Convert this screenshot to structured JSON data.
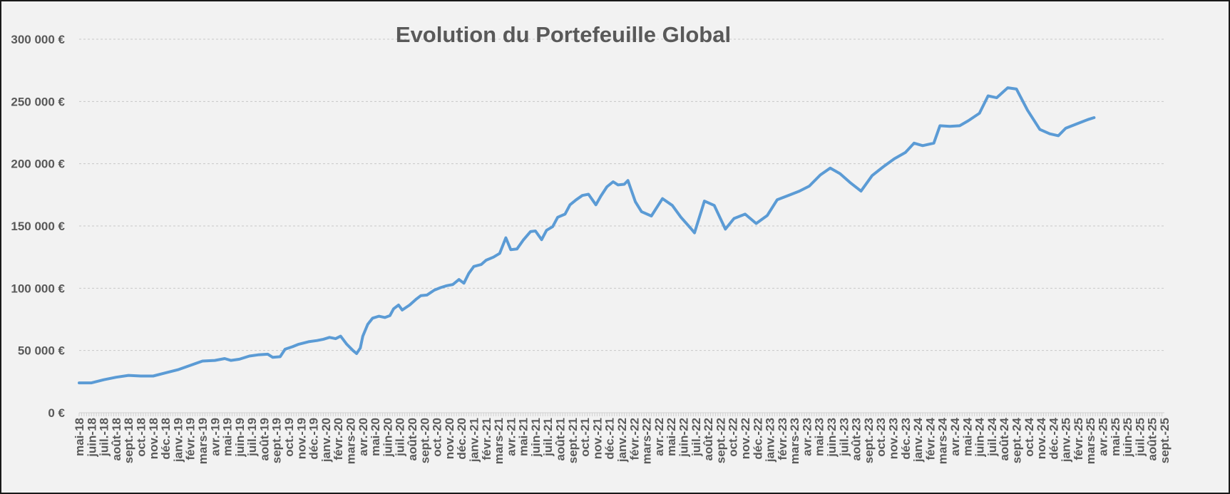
{
  "chart_data": {
    "type": "line",
    "title": "Evolution du Portefeuille Global",
    "xlabel": "",
    "ylabel": "",
    "ylim": [
      0,
      300000
    ],
    "y_ticks": [
      {
        "value": 0,
        "label": "0 €"
      },
      {
        "value": 50000,
        "label": "50 000 €"
      },
      {
        "value": 100000,
        "label": "100 000 €"
      },
      {
        "value": 150000,
        "label": "150 000 €"
      },
      {
        "value": 200000,
        "label": "200 000 €"
      },
      {
        "value": 250000,
        "label": "250 000 €"
      },
      {
        "value": 300000,
        "label": "300 000 €"
      }
    ],
    "grid": "horizontal-dashed",
    "legend": "none",
    "colors": {
      "line": "#5b9bd5",
      "grid": "#c8c8c8",
      "text": "#595959",
      "background": "#f2f2f2"
    },
    "categories": [
      "mai-18",
      "juin-18",
      "juil.-18",
      "août-18",
      "sept.-18",
      "oct.-18",
      "nov.-18",
      "déc.-18",
      "janv.-19",
      "févr.-19",
      "mars-19",
      "avr.-19",
      "mai-19",
      "juin-19",
      "juil.-19",
      "août-19",
      "sept.-19",
      "oct.-19",
      "nov.-19",
      "déc.-19",
      "janv.-20",
      "févr.-20",
      "mars-20",
      "avr.-20",
      "mai-20",
      "juin-20",
      "juil.-20",
      "août-20",
      "sept.-20",
      "oct.-20",
      "nov.-20",
      "déc.-20",
      "janv.-21",
      "févr.-21",
      "mars-21",
      "avr.-21",
      "mai-21",
      "juin-21",
      "juil.-21",
      "août-21",
      "sept.-21",
      "oct.-21",
      "nov.-21",
      "déc.-21",
      "janv.-22",
      "févr.-22",
      "mars-22",
      "avr.-22",
      "mai-22",
      "juin-22",
      "juil.-22",
      "août-22",
      "sept.-22",
      "oct.-22",
      "nov.-22",
      "déc.-22",
      "janv.-23",
      "févr.-23",
      "mars-23",
      "avr.-23",
      "mai-23",
      "juin-23",
      "juil.-23",
      "août-23",
      "sept.-23",
      "oct.-23",
      "nov.-23",
      "déc.-23",
      "janv.-24",
      "févr.-24",
      "mars-24",
      "avr.-24",
      "mai-24",
      "juin-24",
      "juil.-24",
      "août-24",
      "sept.-24",
      "oct.-24",
      "nov.-24",
      "déc.-24",
      "janv.-25",
      "févr.-25",
      "mars-25",
      "avr.-25",
      "mai-25",
      "juin-25",
      "juil.-25",
      "août-25",
      "sept.-25"
    ],
    "series": [
      {
        "points": [
          [
            0,
            24000
          ],
          [
            1,
            24000
          ],
          [
            2,
            26500
          ],
          [
            3,
            28500
          ],
          [
            4,
            30000
          ],
          [
            5,
            29500
          ],
          [
            6,
            29500
          ],
          [
            7,
            32000
          ],
          [
            8,
            34500
          ],
          [
            9,
            38000
          ],
          [
            10,
            41500
          ],
          [
            11,
            42000
          ],
          [
            11.8,
            43500
          ],
          [
            12.3,
            42000
          ],
          [
            13,
            43000
          ],
          [
            13.8,
            45500
          ],
          [
            14.5,
            46500
          ],
          [
            15.3,
            47000
          ],
          [
            15.7,
            44500
          ],
          [
            16.3,
            45000
          ],
          [
            16.7,
            51000
          ],
          [
            17.3,
            53000
          ],
          [
            17.8,
            55000
          ],
          [
            18.6,
            57000
          ],
          [
            19.3,
            58000
          ],
          [
            19.8,
            59000
          ],
          [
            20.3,
            60500
          ],
          [
            20.8,
            59500
          ],
          [
            21.2,
            61500
          ],
          [
            21.7,
            55000
          ],
          [
            22.2,
            50000
          ],
          [
            22.5,
            47500
          ],
          [
            22.8,
            52000
          ],
          [
            23.0,
            61500
          ],
          [
            23.4,
            71000
          ],
          [
            23.8,
            76000
          ],
          [
            24.3,
            77500
          ],
          [
            24.8,
            76500
          ],
          [
            25.2,
            78000
          ],
          [
            25.5,
            83500
          ],
          [
            25.9,
            86500
          ],
          [
            26.2,
            82500
          ],
          [
            26.8,
            86500
          ],
          [
            27.3,
            91000
          ],
          [
            27.7,
            94000
          ],
          [
            28.2,
            94500
          ],
          [
            28.8,
            98500
          ],
          [
            29.3,
            100500
          ],
          [
            29.8,
            102000
          ],
          [
            30.3,
            103000
          ],
          [
            30.8,
            107000
          ],
          [
            31.2,
            104000
          ],
          [
            31.6,
            112000
          ],
          [
            32.0,
            117500
          ],
          [
            32.6,
            119000
          ],
          [
            33.0,
            122500
          ],
          [
            33.6,
            125000
          ],
          [
            34.1,
            128000
          ],
          [
            34.6,
            140500
          ],
          [
            35.0,
            131000
          ],
          [
            35.5,
            131500
          ],
          [
            36.0,
            138500
          ],
          [
            36.6,
            145500
          ],
          [
            37.0,
            146000
          ],
          [
            37.5,
            139000
          ],
          [
            37.9,
            146500
          ],
          [
            38.4,
            149500
          ],
          [
            38.8,
            157000
          ],
          [
            39.4,
            159500
          ],
          [
            39.8,
            167000
          ],
          [
            40.3,
            171000
          ],
          [
            40.8,
            174500
          ],
          [
            41.3,
            175500
          ],
          [
            41.9,
            167000
          ],
          [
            42.3,
            174000
          ],
          [
            42.8,
            181500
          ],
          [
            43.3,
            185500
          ],
          [
            43.7,
            183000
          ],
          [
            44.2,
            183500
          ],
          [
            44.5,
            186500
          ],
          [
            45.1,
            169500
          ],
          [
            45.6,
            161500
          ],
          [
            46.4,
            158000
          ],
          [
            47.3,
            172000
          ],
          [
            48.1,
            166500
          ],
          [
            48.8,
            157000
          ],
          [
            49.6,
            148000
          ],
          [
            49.9,
            144500
          ],
          [
            50.7,
            170000
          ],
          [
            51.5,
            166500
          ],
          [
            52.4,
            147500
          ],
          [
            53.1,
            156000
          ],
          [
            54.0,
            159500
          ],
          [
            54.9,
            152000
          ],
          [
            55.8,
            158500
          ],
          [
            56.6,
            171000
          ],
          [
            57.5,
            174500
          ],
          [
            58.4,
            178000
          ],
          [
            59.2,
            182000
          ],
          [
            60.1,
            191000
          ],
          [
            60.9,
            196500
          ],
          [
            61.7,
            192000
          ],
          [
            62.5,
            185000
          ],
          [
            63.4,
            178000
          ],
          [
            64.3,
            190500
          ],
          [
            65.2,
            197500
          ],
          [
            66.1,
            204000
          ],
          [
            67.0,
            209000
          ],
          [
            67.7,
            216500
          ],
          [
            68.4,
            214500
          ],
          [
            69.3,
            216500
          ],
          [
            69.8,
            230500
          ],
          [
            70.6,
            230000
          ],
          [
            71.4,
            230500
          ],
          [
            72.1,
            234500
          ],
          [
            73.0,
            240500
          ],
          [
            73.7,
            254500
          ],
          [
            74.4,
            253000
          ],
          [
            75.3,
            261000
          ],
          [
            76.0,
            260000
          ],
          [
            76.9,
            243000
          ],
          [
            77.9,
            227500
          ],
          [
            78.7,
            224000
          ],
          [
            79.4,
            222500
          ],
          [
            80.0,
            228500
          ],
          [
            80.9,
            232000
          ],
          [
            81.8,
            235500
          ],
          [
            82.3,
            237000
          ]
        ]
      }
    ]
  }
}
